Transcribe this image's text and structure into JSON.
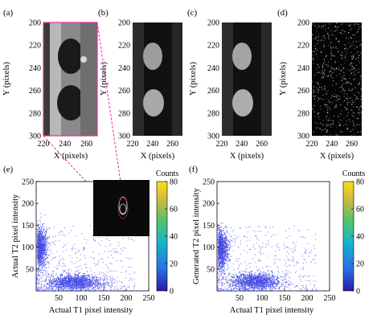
{
  "panels_top": [
    {
      "label": "(a)",
      "ylabel": "Y (pixels)",
      "xlabel": "X (pixels)"
    },
    {
      "label": "(b)",
      "ylabel": "Y (pixels)",
      "xlabel": "X (pixels)"
    },
    {
      "label": "(c)",
      "ylabel": "Y (pixels)",
      "xlabel": "X (pixels)"
    },
    {
      "label": "(d)",
      "ylabel": "Y (pixels)",
      "xlabel": "X (pixels)"
    }
  ],
  "top_yticks": [
    "200",
    "220",
    "240",
    "260",
    "280",
    "300"
  ],
  "top_xticks": [
    "220",
    "240",
    "260"
  ],
  "panel_e": {
    "label": "(e)",
    "ylabel": "Actual T2 pixel intensity",
    "xlabel": "Actual T1 pixel intensity"
  },
  "panel_f": {
    "label": "(f)",
    "ylabel": "Generated T2 pixel intensity",
    "xlabel": "Actual T1 pixel intensity"
  },
  "colorbar": {
    "title": "Counts",
    "ticks": [
      "80",
      "60",
      "40",
      "20",
      "0"
    ]
  },
  "colors": {
    "low": "#3a3ad6",
    "high": "#f5e21e",
    "highlight": "#e0309a"
  },
  "chart_data": [
    {
      "type": "image",
      "panel": "(a)",
      "xlim": [
        220,
        270
      ],
      "ylim": [
        200,
        300
      ],
      "y_reversed": true
    },
    {
      "type": "image",
      "panel": "(b)",
      "xlim": [
        220,
        270
      ],
      "ylim": [
        200,
        300
      ],
      "y_reversed": true
    },
    {
      "type": "image",
      "panel": "(c)",
      "xlim": [
        220,
        270
      ],
      "ylim": [
        200,
        300
      ],
      "y_reversed": true
    },
    {
      "type": "image",
      "panel": "(d)",
      "xlim": [
        220,
        270
      ],
      "ylim": [
        200,
        300
      ],
      "y_reversed": true
    },
    {
      "type": "heatmap",
      "panel": "(e)",
      "xlim": [
        0,
        250
      ],
      "ylim": [
        0,
        250
      ],
      "xticks": [
        50,
        100,
        150,
        200,
        250
      ],
      "yticks": [
        50,
        100,
        150,
        200,
        250
      ],
      "colorbar_range": [
        0,
        80
      ],
      "clusters": [
        {
          "x": 8,
          "y": 100,
          "sx": 8,
          "sy": 22
        },
        {
          "x": 85,
          "y": 20,
          "sx": 28,
          "sy": 9
        }
      ]
    },
    {
      "type": "heatmap",
      "panel": "(f)",
      "xlim": [
        0,
        250
      ],
      "ylim": [
        0,
        250
      ],
      "xticks": [
        50,
        100,
        150,
        200,
        250
      ],
      "yticks": [
        50,
        100,
        150,
        200,
        250
      ],
      "colorbar_range": [
        0,
        80
      ],
      "clusters": [
        {
          "x": 8,
          "y": 95,
          "sx": 8,
          "sy": 22
        },
        {
          "x": 85,
          "y": 22,
          "sx": 28,
          "sy": 9
        }
      ]
    }
  ]
}
